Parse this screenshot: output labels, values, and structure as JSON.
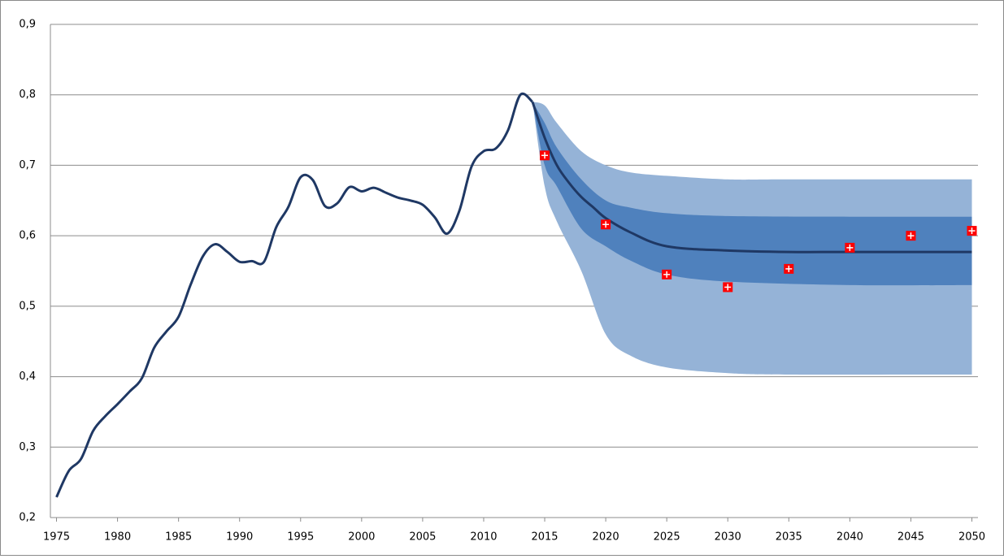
{
  "chart_data": {
    "type": "line",
    "xlim": [
      1974.5,
      2050.5
    ],
    "ylim": [
      0.2,
      0.9
    ],
    "xticks": [
      1975,
      1980,
      1985,
      1990,
      1995,
      2000,
      2005,
      2010,
      2015,
      2020,
      2025,
      2030,
      2035,
      2040,
      2045,
      2050
    ],
    "yticks": [
      {
        "value": 0.2,
        "label": "0,2"
      },
      {
        "value": 0.3,
        "label": "0,3"
      },
      {
        "value": 0.4,
        "label": "0,4"
      },
      {
        "value": 0.5,
        "label": "0,5"
      },
      {
        "value": 0.6,
        "label": "0,6"
      },
      {
        "value": 0.7,
        "label": "0,7"
      },
      {
        "value": 0.8,
        "label": "0,8"
      },
      {
        "value": 0.9,
        "label": "0,9"
      }
    ],
    "grid": true,
    "bands": [
      {
        "color": "#95b3d7",
        "x": [
          2014,
          2015,
          2016,
          2018,
          2020,
          2022,
          2025,
          2030,
          2035,
          2050
        ],
        "upper": [
          0.79,
          0.785,
          0.76,
          0.72,
          0.7,
          0.69,
          0.685,
          0.68,
          0.68,
          0.68
        ],
        "lower": [
          0.79,
          0.67,
          0.62,
          0.55,
          0.46,
          0.43,
          0.413,
          0.405,
          0.403,
          0.403
        ]
      },
      {
        "color": "#4f81bd",
        "x": [
          2014,
          2015,
          2016,
          2018,
          2020,
          2022,
          2025,
          2030,
          2040,
          2050
        ],
        "upper": [
          0.79,
          0.76,
          0.725,
          0.68,
          0.65,
          0.64,
          0.632,
          0.628,
          0.627,
          0.627
        ],
        "lower": [
          0.79,
          0.7,
          0.67,
          0.61,
          0.585,
          0.565,
          0.545,
          0.535,
          0.53,
          0.53
        ]
      }
    ],
    "series": [
      {
        "color": "#1f3864",
        "x": [
          1975,
          1976,
          1977,
          1978,
          1979,
          1980,
          1981,
          1982,
          1983,
          1984,
          1985,
          1986,
          1987,
          1988,
          1989,
          1990,
          1991,
          1992,
          1993,
          1994,
          1995,
          1996,
          1997,
          1998,
          1999,
          2000,
          2001,
          2002,
          2003,
          2004,
          2005,
          2006,
          2007,
          2008,
          2009,
          2010,
          2011,
          2012,
          2013,
          2014
        ],
        "values": [
          0.229,
          0.266,
          0.283,
          0.323,
          0.344,
          0.361,
          0.379,
          0.398,
          0.441,
          0.464,
          0.485,
          0.531,
          0.571,
          0.588,
          0.577,
          0.563,
          0.564,
          0.563,
          0.612,
          0.641,
          0.683,
          0.679,
          0.642,
          0.646,
          0.669,
          0.663,
          0.668,
          0.661,
          0.654,
          0.65,
          0.644,
          0.626,
          0.603,
          0.635,
          0.698,
          0.72,
          0.724,
          0.75,
          0.8,
          0.79
        ]
      },
      {
        "color": "#1f3864",
        "x": [
          2014,
          2015,
          2016,
          2017,
          2018,
          2019,
          2020,
          2022,
          2025,
          2030,
          2035,
          2040,
          2050
        ],
        "values": [
          0.79,
          0.739,
          0.7,
          0.675,
          0.655,
          0.64,
          0.625,
          0.605,
          0.585,
          0.579,
          0.577,
          0.577,
          0.577
        ]
      }
    ],
    "points": {
      "color": "#ff0000",
      "x": [
        2015,
        2020,
        2025,
        2030,
        2035,
        2040,
        2045,
        2050
      ],
      "values": [
        0.714,
        0.616,
        0.545,
        0.527,
        0.553,
        0.583,
        0.6,
        0.607
      ]
    }
  }
}
